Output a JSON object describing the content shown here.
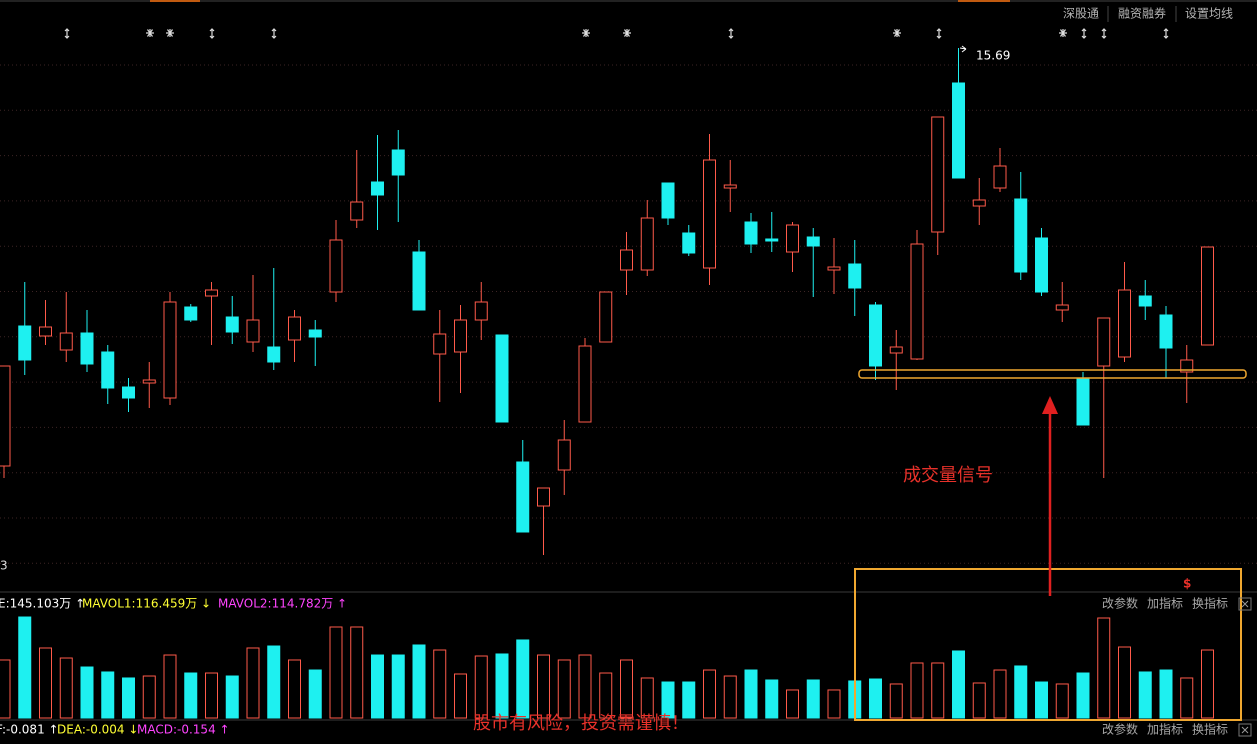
{
  "toolbar": [
    "深股通",
    "融资融券",
    "设置均线"
  ],
  "panel_buttons": [
    "改参数",
    "加指标",
    "换指标"
  ],
  "annotations": {
    "signal": "成交量信号",
    "warning": "股市有风险，投资需谨慎！",
    "marker": "$"
  },
  "ylabel_fragment": "3",
  "macd_legend": {
    "texts": [
      "F:-0.081 ↑",
      "DEA:-0.004 ↓",
      "MACD:-0.154 ↑"
    ],
    "colors": [
      "#ffffff",
      "#ffff33",
      "#ff44ff"
    ]
  },
  "chart_data": [
    {
      "type": "candlestick",
      "up_color": "#ff5a4a",
      "down_color": "#1ef0f0",
      "ylim": [
        10.27,
        16.17
      ],
      "ohlc": [
        [
          11.51,
          12.51,
          11.39,
          12.51
        ],
        [
          12.91,
          13.35,
          12.42,
          12.57
        ],
        [
          12.81,
          13.17,
          12.72,
          12.9
        ],
        [
          12.67,
          13.25,
          12.55,
          12.84
        ],
        [
          12.84,
          13.07,
          12.45,
          12.53
        ],
        [
          12.65,
          12.72,
          12.13,
          12.29
        ],
        [
          12.3,
          12.39,
          12.05,
          12.19
        ],
        [
          12.34,
          12.55,
          12.09,
          12.37
        ],
        [
          12.19,
          13.25,
          12.12,
          13.15
        ],
        [
          13.1,
          13.13,
          12.95,
          12.97
        ],
        [
          13.21,
          13.35,
          12.72,
          13.27
        ],
        [
          13.0,
          13.21,
          12.73,
          12.85
        ],
        [
          12.75,
          13.42,
          12.65,
          12.97
        ],
        [
          12.7,
          13.49,
          12.47,
          12.55
        ],
        [
          12.77,
          13.07,
          12.55,
          13.0
        ],
        [
          12.87,
          12.97,
          12.51,
          12.8
        ],
        [
          13.25,
          13.97,
          13.15,
          13.77
        ],
        [
          13.97,
          14.67,
          13.89,
          14.15
        ],
        [
          14.35,
          14.82,
          13.87,
          14.22
        ],
        [
          14.67,
          14.87,
          13.95,
          14.42
        ],
        [
          13.65,
          13.77,
          13.07,
          13.07
        ],
        [
          12.63,
          13.07,
          12.15,
          12.83
        ],
        [
          12.65,
          13.12,
          12.24,
          12.97
        ],
        [
          12.97,
          13.35,
          12.77,
          13.15
        ],
        [
          12.82,
          12.82,
          11.95,
          11.95
        ],
        [
          11.55,
          11.77,
          10.85,
          10.85
        ],
        [
          11.11,
          11.29,
          10.62,
          11.29
        ],
        [
          11.47,
          11.97,
          11.22,
          11.77
        ],
        [
          11.95,
          12.79,
          11.95,
          12.71
        ],
        [
          12.75,
          13.25,
          12.75,
          13.25
        ],
        [
          13.47,
          13.85,
          13.22,
          13.67
        ],
        [
          13.47,
          14.17,
          13.41,
          13.99
        ],
        [
          14.34,
          14.34,
          13.92,
          13.99
        ],
        [
          13.84,
          13.92,
          13.61,
          13.64
        ],
        [
          13.49,
          14.83,
          13.32,
          14.57
        ],
        [
          14.29,
          14.57,
          14.05,
          14.32
        ],
        [
          13.95,
          14.04,
          13.64,
          13.73
        ],
        [
          13.78,
          14.05,
          13.65,
          13.76
        ],
        [
          13.65,
          13.95,
          13.45,
          13.92
        ],
        [
          13.8,
          13.89,
          13.2,
          13.71
        ],
        [
          13.47,
          13.79,
          13.23,
          13.5
        ],
        [
          13.53,
          13.77,
          13.01,
          13.29
        ],
        [
          13.12,
          13.15,
          12.37,
          12.51
        ],
        [
          12.64,
          12.87,
          12.27,
          12.7
        ],
        [
          12.58,
          13.87,
          12.57,
          13.73
        ],
        [
          13.85,
          15.0,
          13.62,
          15.0
        ],
        [
          15.34,
          15.69,
          14.39,
          14.39
        ],
        [
          14.11,
          14.39,
          13.92,
          14.17
        ],
        [
          14.29,
          14.69,
          14.25,
          14.51
        ],
        [
          14.18,
          14.45,
          13.37,
          13.45
        ],
        [
          13.79,
          13.89,
          13.21,
          13.25
        ],
        [
          13.07,
          13.35,
          12.95,
          13.12
        ],
        [
          12.39,
          12.45,
          11.92,
          11.92
        ],
        [
          12.51,
          12.99,
          11.39,
          12.99
        ],
        [
          12.6,
          13.55,
          12.55,
          13.27
        ],
        [
          13.21,
          13.37,
          12.97,
          13.11
        ],
        [
          13.02,
          13.11,
          12.39,
          12.69
        ],
        [
          12.45,
          12.72,
          12.14,
          12.57
        ],
        [
          12.72,
          13.7,
          12.72,
          13.7
        ]
      ]
    },
    {
      "type": "volume",
      "ylim": [
        0,
        226.2
      ],
      "values": [
        123.8,
        215.5,
        149.4,
        128.0,
        108.8,
        98.2,
        85.4,
        89.6,
        134.4,
        96.0,
        96.0,
        89.6,
        149.4,
        153.6,
        123.8,
        102.4,
        194.2,
        194.2,
        134.4,
        134.4,
        155.8,
        145.1,
        93.9,
        132.3,
        136.6,
        166.5,
        134.4,
        123.8,
        134.4,
        96.0,
        123.8,
        85.4,
        76.8,
        76.8,
        102.4,
        89.6,
        102.4,
        81.1,
        59.8,
        81.1,
        59.8,
        79.0,
        83.2,
        72.6,
        117.4,
        117.4,
        143.0,
        74.7,
        102.4,
        111.0,
        76.8,
        72.6,
        96.0,
        213.4,
        151.5,
        98.2,
        102.4,
        85.4,
        145.103
      ],
      "legend": [
        "E:145.103万 ↑",
        "MAVOL1:116.459万 ↓",
        "MAVOL2:114.782万 ↑"
      ],
      "legend_colors": [
        "#ffffff",
        "#ffff33",
        "#ff44ff"
      ]
    }
  ]
}
